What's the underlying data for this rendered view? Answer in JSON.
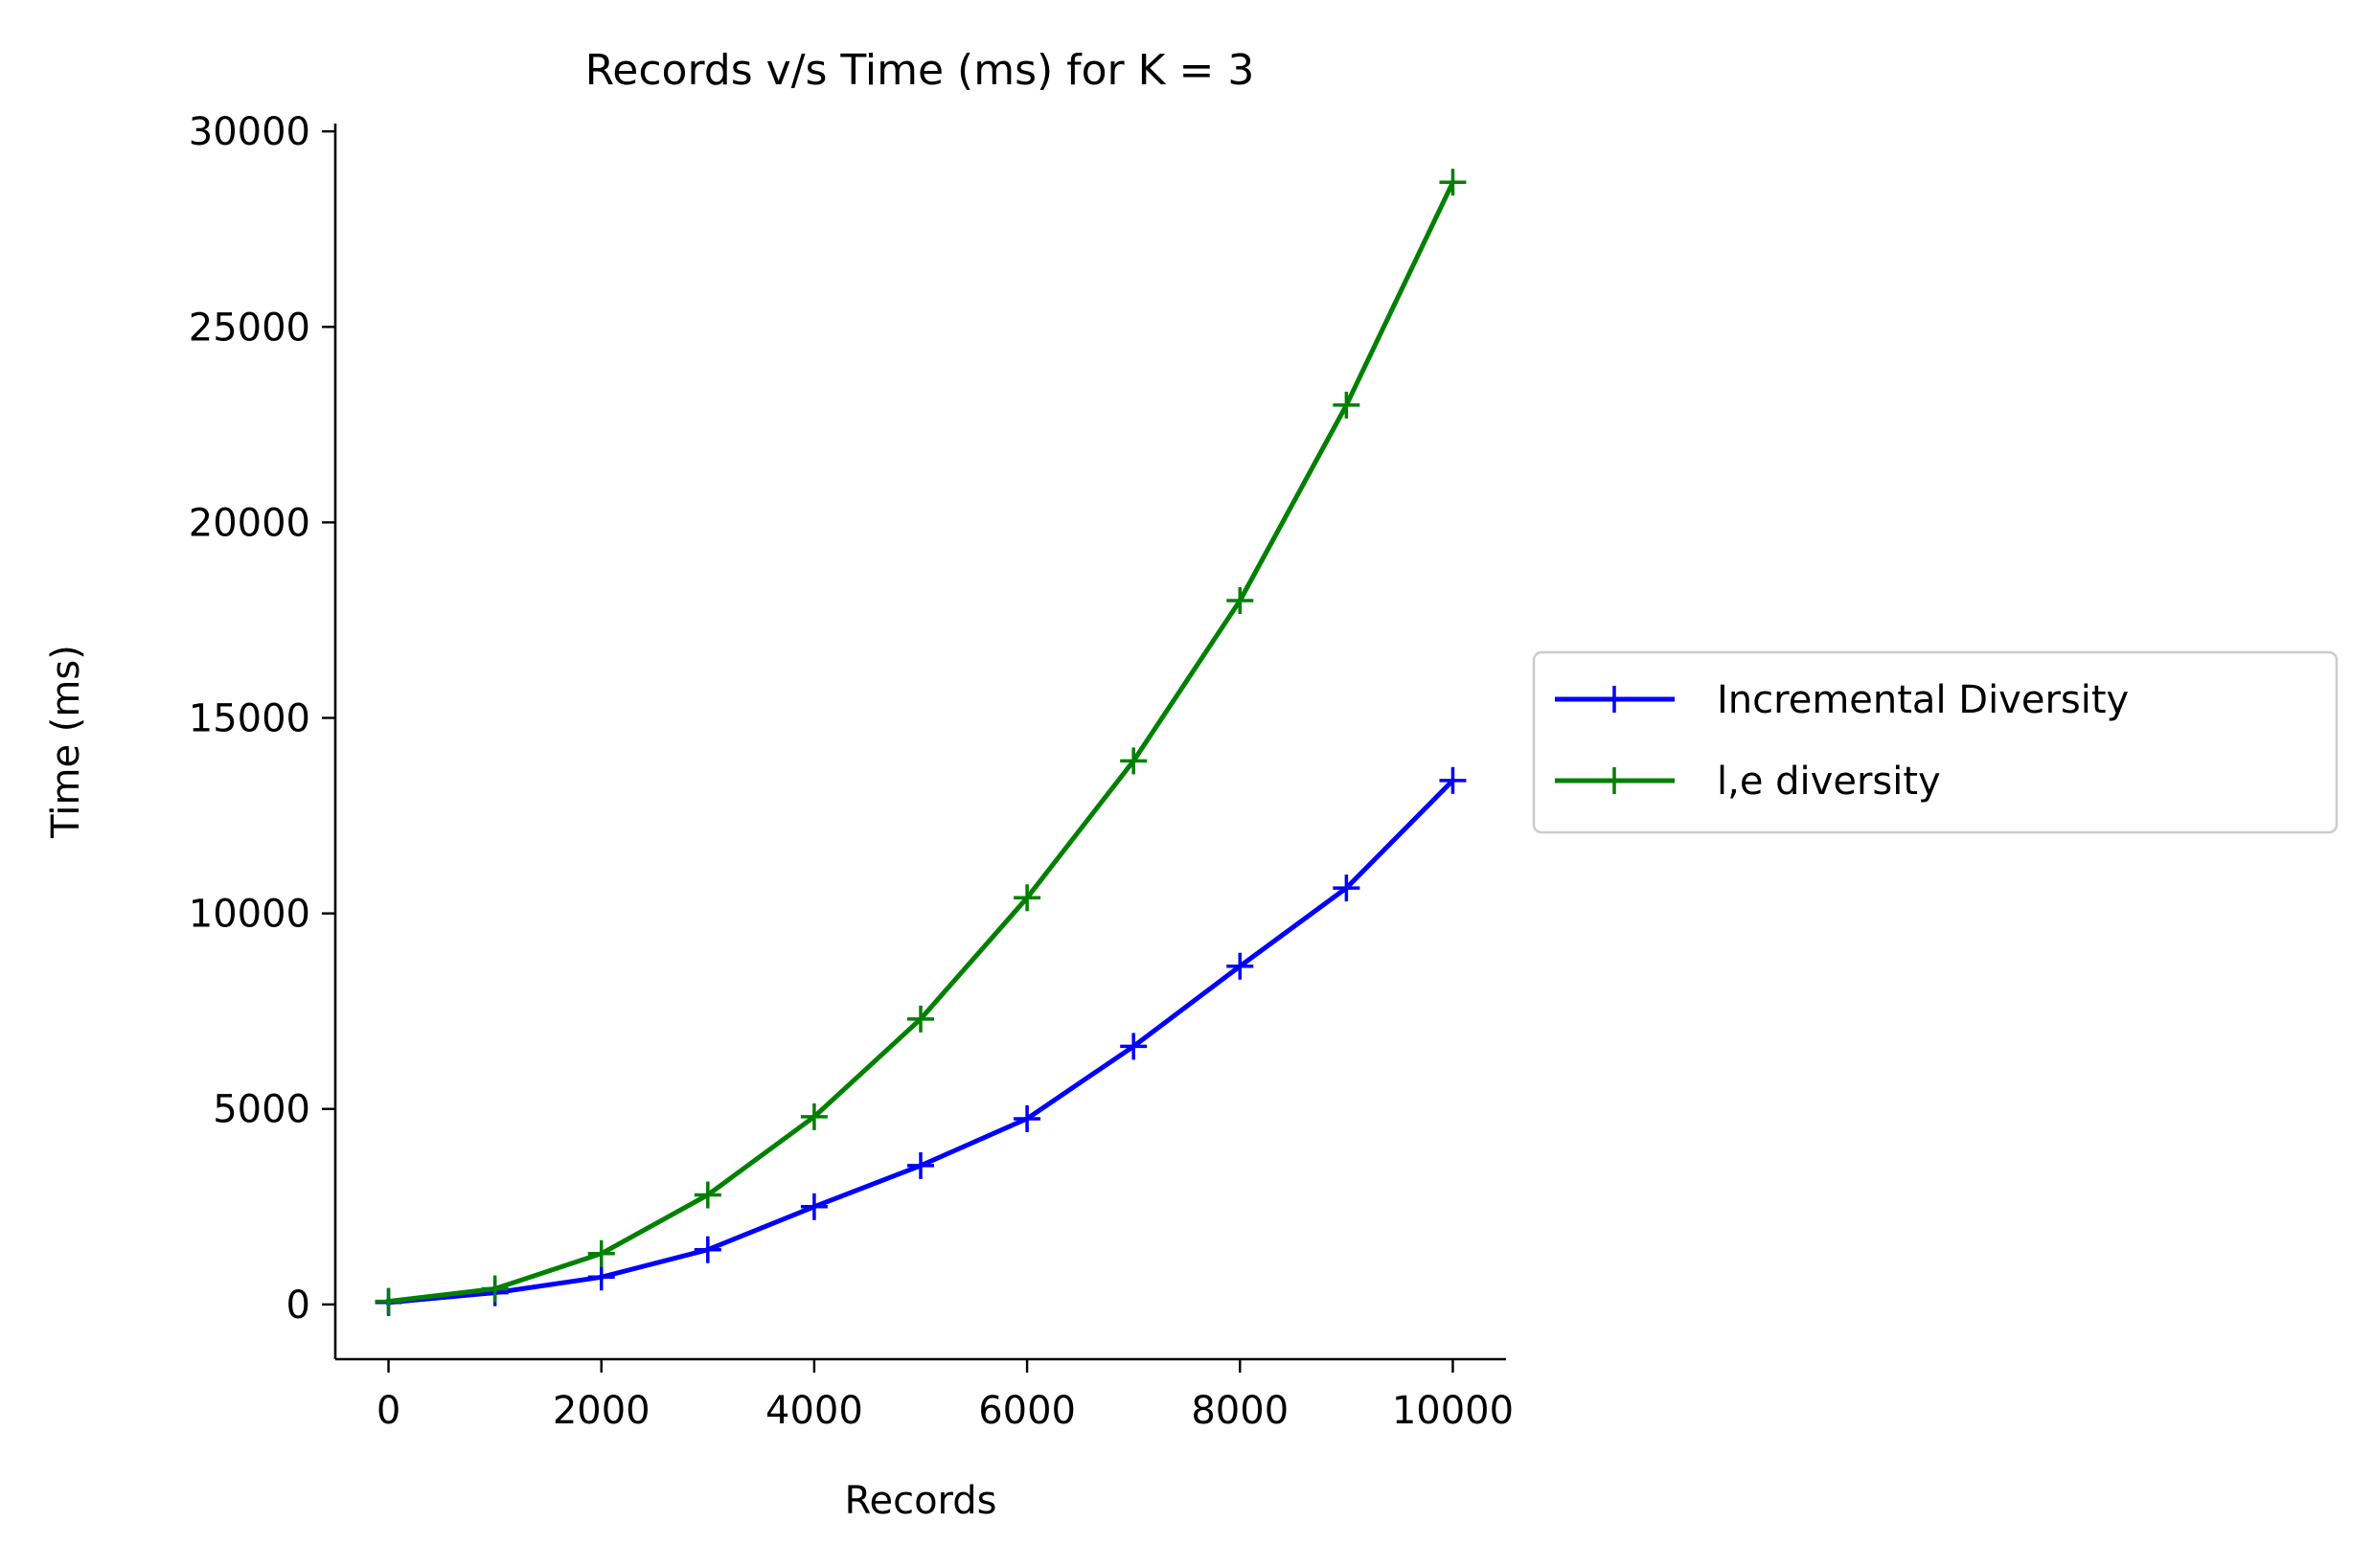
{
  "chart_data": {
    "type": "line",
    "title": "Records v/s Time (ms) for K = 3",
    "xlabel": "Records",
    "ylabel": "Time (ms)",
    "xlim": [
      -500,
      10500
    ],
    "ylim": [
      -1400,
      30200
    ],
    "xticks": [
      0,
      2000,
      4000,
      6000,
      8000,
      10000
    ],
    "yticks": [
      0,
      5000,
      10000,
      15000,
      20000,
      25000,
      30000
    ],
    "x": [
      0,
      1000,
      2000,
      3000,
      4000,
      5000,
      6000,
      7000,
      8000,
      9000,
      10000
    ],
    "series": [
      {
        "name": "Incremental Diversity",
        "color": "#0000ff",
        "marker": "+",
        "values": [
          50,
          300,
          700,
          1400,
          2500,
          3550,
          4750,
          6600,
          8650,
          10650,
          13400
        ]
      },
      {
        "name": "l,e diversity",
        "color": "#008000",
        "marker": "+",
        "values": [
          80,
          400,
          1300,
          2800,
          4800,
          7300,
          10400,
          13900,
          18000,
          23000,
          28700
        ]
      }
    ],
    "legend": {
      "placement": "center-right-outside"
    },
    "grid": false
  }
}
